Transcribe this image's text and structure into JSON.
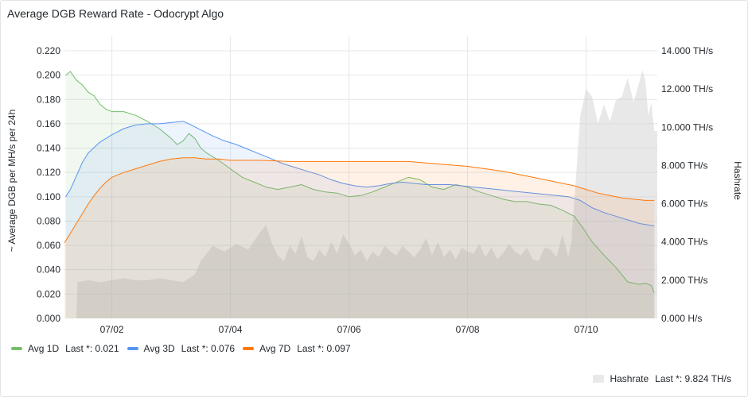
{
  "panel": {
    "title": "Average DGB Reward Rate - Odocrypt Algo"
  },
  "colors": {
    "avg1d": "#73bf69",
    "avg3d": "#5794f2",
    "avg7d": "#ff780a",
    "hashrate": "#cccccc",
    "grid": "#e6e7ea"
  },
  "legend": {
    "avg1d": {
      "name": "Avg 1D",
      "stat": "Last *: 0.021"
    },
    "avg3d": {
      "name": "Avg 3D",
      "stat": "Last *: 0.076"
    },
    "avg7d": {
      "name": "Avg 7D",
      "stat": "Last *: 0.097"
    },
    "hashrate": {
      "name": "Hashrate",
      "stat": "Last *: 9.824 TH/s"
    }
  },
  "chart_data": {
    "type": "line",
    "ylabel": "~ Average DGB per MH/s per 24h",
    "y2label": "Hashrate",
    "ylim": [
      0,
      0.22
    ],
    "y2lim": [
      0,
      14
    ],
    "yticks": [
      "0.000",
      "0.020",
      "0.040",
      "0.060",
      "0.080",
      "0.100",
      "0.120",
      "0.140",
      "0.160",
      "0.180",
      "0.200",
      "0.220"
    ],
    "y2ticks": [
      "0.000 H/s",
      "2.000 TH/s",
      "4.000 TH/s",
      "6.000 TH/s",
      "8.000 TH/s",
      "10.000 TH/s",
      "12.000 TH/s",
      "14.000 TH/s"
    ],
    "xlim": [
      1.2,
      11.2
    ],
    "xticks": [
      {
        "v": 2,
        "label": "07/02"
      },
      {
        "v": 4,
        "label": "07/04"
      },
      {
        "v": 6,
        "label": "07/06"
      },
      {
        "v": 8,
        "label": "07/08"
      },
      {
        "v": 10,
        "label": "07/10"
      }
    ],
    "grid": true,
    "legend_position": "bottom",
    "series": [
      {
        "name": "Avg 1D",
        "axis": "left",
        "color": "#73bf69",
        "points": [
          [
            1.22,
            0.2
          ],
          [
            1.3,
            0.203
          ],
          [
            1.4,
            0.196
          ],
          [
            1.5,
            0.192
          ],
          [
            1.6,
            0.186
          ],
          [
            1.7,
            0.183
          ],
          [
            1.8,
            0.176
          ],
          [
            1.9,
            0.172
          ],
          [
            2.0,
            0.17
          ],
          [
            2.2,
            0.17
          ],
          [
            2.4,
            0.167
          ],
          [
            2.6,
            0.162
          ],
          [
            2.8,
            0.156
          ],
          [
            3.0,
            0.148
          ],
          [
            3.1,
            0.143
          ],
          [
            3.2,
            0.146
          ],
          [
            3.3,
            0.152
          ],
          [
            3.4,
            0.148
          ],
          [
            3.5,
            0.14
          ],
          [
            3.6,
            0.136
          ],
          [
            3.8,
            0.13
          ],
          [
            4.0,
            0.123
          ],
          [
            4.2,
            0.116
          ],
          [
            4.4,
            0.112
          ],
          [
            4.6,
            0.108
          ],
          [
            4.8,
            0.106
          ],
          [
            5.0,
            0.108
          ],
          [
            5.2,
            0.11
          ],
          [
            5.4,
            0.106
          ],
          [
            5.6,
            0.104
          ],
          [
            5.8,
            0.103
          ],
          [
            6.0,
            0.1
          ],
          [
            6.2,
            0.101
          ],
          [
            6.4,
            0.104
          ],
          [
            6.6,
            0.108
          ],
          [
            6.8,
            0.112
          ],
          [
            7.0,
            0.116
          ],
          [
            7.2,
            0.114
          ],
          [
            7.4,
            0.108
          ],
          [
            7.6,
            0.106
          ],
          [
            7.8,
            0.11
          ],
          [
            8.0,
            0.108
          ],
          [
            8.2,
            0.104
          ],
          [
            8.4,
            0.101
          ],
          [
            8.6,
            0.098
          ],
          [
            8.8,
            0.096
          ],
          [
            9.0,
            0.096
          ],
          [
            9.2,
            0.094
          ],
          [
            9.4,
            0.093
          ],
          [
            9.6,
            0.089
          ],
          [
            9.8,
            0.084
          ],
          [
            9.95,
            0.074
          ],
          [
            10.1,
            0.063
          ],
          [
            10.3,
            0.052
          ],
          [
            10.5,
            0.042
          ],
          [
            10.7,
            0.03
          ],
          [
            10.9,
            0.028
          ],
          [
            11.0,
            0.029
          ],
          [
            11.1,
            0.027
          ],
          [
            11.15,
            0.021
          ]
        ]
      },
      {
        "name": "Avg 3D",
        "axis": "left",
        "color": "#5794f2",
        "points": [
          [
            1.22,
            0.1
          ],
          [
            1.3,
            0.106
          ],
          [
            1.4,
            0.117
          ],
          [
            1.5,
            0.128
          ],
          [
            1.6,
            0.136
          ],
          [
            1.8,
            0.145
          ],
          [
            2.0,
            0.151
          ],
          [
            2.2,
            0.156
          ],
          [
            2.4,
            0.159
          ],
          [
            2.6,
            0.16
          ],
          [
            2.8,
            0.16
          ],
          [
            3.0,
            0.161
          ],
          [
            3.2,
            0.162
          ],
          [
            3.3,
            0.16
          ],
          [
            3.5,
            0.155
          ],
          [
            3.7,
            0.15
          ],
          [
            3.9,
            0.146
          ],
          [
            4.1,
            0.143
          ],
          [
            4.3,
            0.139
          ],
          [
            4.5,
            0.135
          ],
          [
            4.7,
            0.131
          ],
          [
            4.9,
            0.127
          ],
          [
            5.1,
            0.124
          ],
          [
            5.3,
            0.121
          ],
          [
            5.5,
            0.118
          ],
          [
            5.7,
            0.114
          ],
          [
            5.9,
            0.111
          ],
          [
            6.1,
            0.109
          ],
          [
            6.3,
            0.108
          ],
          [
            6.5,
            0.109
          ],
          [
            6.7,
            0.111
          ],
          [
            6.9,
            0.112
          ],
          [
            7.1,
            0.111
          ],
          [
            7.3,
            0.11
          ],
          [
            7.5,
            0.11
          ],
          [
            7.7,
            0.11
          ],
          [
            7.9,
            0.109
          ],
          [
            8.1,
            0.108
          ],
          [
            8.3,
            0.107
          ],
          [
            8.5,
            0.106
          ],
          [
            8.7,
            0.105
          ],
          [
            8.9,
            0.104
          ],
          [
            9.1,
            0.103
          ],
          [
            9.3,
            0.102
          ],
          [
            9.5,
            0.101
          ],
          [
            9.7,
            0.1
          ],
          [
            9.9,
            0.097
          ],
          [
            10.1,
            0.091
          ],
          [
            10.3,
            0.087
          ],
          [
            10.5,
            0.084
          ],
          [
            10.7,
            0.081
          ],
          [
            10.9,
            0.078
          ],
          [
            11.15,
            0.076
          ]
        ]
      },
      {
        "name": "Avg 7D",
        "axis": "left",
        "color": "#ff780a",
        "points": [
          [
            1.2,
            0.062
          ],
          [
            1.3,
            0.07
          ],
          [
            1.4,
            0.078
          ],
          [
            1.5,
            0.086
          ],
          [
            1.6,
            0.094
          ],
          [
            1.7,
            0.101
          ],
          [
            1.8,
            0.107
          ],
          [
            1.9,
            0.112
          ],
          [
            2.0,
            0.116
          ],
          [
            2.2,
            0.12
          ],
          [
            2.4,
            0.123
          ],
          [
            2.6,
            0.126
          ],
          [
            2.8,
            0.129
          ],
          [
            3.0,
            0.131
          ],
          [
            3.2,
            0.132
          ],
          [
            3.4,
            0.132
          ],
          [
            3.6,
            0.131
          ],
          [
            3.8,
            0.131
          ],
          [
            4.0,
            0.13
          ],
          [
            4.5,
            0.13
          ],
          [
            5.0,
            0.129
          ],
          [
            5.5,
            0.129
          ],
          [
            6.0,
            0.129
          ],
          [
            6.5,
            0.129
          ],
          [
            7.0,
            0.129
          ],
          [
            7.5,
            0.127
          ],
          [
            8.0,
            0.125
          ],
          [
            8.3,
            0.123
          ],
          [
            8.6,
            0.121
          ],
          [
            8.9,
            0.118
          ],
          [
            9.2,
            0.115
          ],
          [
            9.5,
            0.112
          ],
          [
            9.8,
            0.109
          ],
          [
            10.0,
            0.106
          ],
          [
            10.2,
            0.103
          ],
          [
            10.4,
            0.101
          ],
          [
            10.6,
            0.099
          ],
          [
            10.8,
            0.098
          ],
          [
            11.0,
            0.097
          ],
          [
            11.15,
            0.097
          ]
        ]
      },
      {
        "name": "Hashrate",
        "axis": "right",
        "unit": "TH/s",
        "color": "#cccccc",
        "points": [
          [
            1.4,
            0
          ],
          [
            1.42,
            1.9
          ],
          [
            1.6,
            2.0
          ],
          [
            1.8,
            1.9
          ],
          [
            2.0,
            2.0
          ],
          [
            2.2,
            2.1
          ],
          [
            2.4,
            2.0
          ],
          [
            2.6,
            2.0
          ],
          [
            2.8,
            2.1
          ],
          [
            3.0,
            2.0
          ],
          [
            3.2,
            1.9
          ],
          [
            3.4,
            2.3
          ],
          [
            3.5,
            3.0
          ],
          [
            3.6,
            3.4
          ],
          [
            3.7,
            3.8
          ],
          [
            3.9,
            3.5
          ],
          [
            4.1,
            3.9
          ],
          [
            4.3,
            3.6
          ],
          [
            4.5,
            4.5
          ],
          [
            4.6,
            4.9
          ],
          [
            4.7,
            3.9
          ],
          [
            4.8,
            3.3
          ],
          [
            4.9,
            3.0
          ],
          [
            5.0,
            3.8
          ],
          [
            5.1,
            3.4
          ],
          [
            5.2,
            4.3
          ],
          [
            5.3,
            3.2
          ],
          [
            5.4,
            3.0
          ],
          [
            5.5,
            3.6
          ],
          [
            5.6,
            3.2
          ],
          [
            5.7,
            4.0
          ],
          [
            5.8,
            3.4
          ],
          [
            5.9,
            4.4
          ],
          [
            6.0,
            3.9
          ],
          [
            6.1,
            3.3
          ],
          [
            6.2,
            3.6
          ],
          [
            6.3,
            3.0
          ],
          [
            6.4,
            3.5
          ],
          [
            6.5,
            3.2
          ],
          [
            6.6,
            3.8
          ],
          [
            6.7,
            3.5
          ],
          [
            6.8,
            3.3
          ],
          [
            6.9,
            3.8
          ],
          [
            7.0,
            3.5
          ],
          [
            7.1,
            3.2
          ],
          [
            7.2,
            3.6
          ],
          [
            7.3,
            4.2
          ],
          [
            7.4,
            3.3
          ],
          [
            7.5,
            4.0
          ],
          [
            7.6,
            3.2
          ],
          [
            7.7,
            3.6
          ],
          [
            7.8,
            3.1
          ],
          [
            7.9,
            3.7
          ],
          [
            8.0,
            3.5
          ],
          [
            8.1,
            3.4
          ],
          [
            8.2,
            3.9
          ],
          [
            8.3,
            3.2
          ],
          [
            8.4,
            3.7
          ],
          [
            8.5,
            3.1
          ],
          [
            8.6,
            3.4
          ],
          [
            8.7,
            3.9
          ],
          [
            8.8,
            3.5
          ],
          [
            8.9,
            3.3
          ],
          [
            9.0,
            3.7
          ],
          [
            9.1,
            3.1
          ],
          [
            9.2,
            3.0
          ],
          [
            9.3,
            3.7
          ],
          [
            9.4,
            3.6
          ],
          [
            9.5,
            3.2
          ],
          [
            9.6,
            4.4
          ],
          [
            9.7,
            3.2
          ],
          [
            9.75,
            4.0
          ],
          [
            9.82,
            7.0
          ],
          [
            9.9,
            10.6
          ],
          [
            9.95,
            11.3
          ],
          [
            10.0,
            12.0
          ],
          [
            10.1,
            11.6
          ],
          [
            10.2,
            10.2
          ],
          [
            10.3,
            11.2
          ],
          [
            10.4,
            10.3
          ],
          [
            10.5,
            11.4
          ],
          [
            10.6,
            11.6
          ],
          [
            10.7,
            12.6
          ],
          [
            10.8,
            11.3
          ],
          [
            10.9,
            12.4
          ],
          [
            10.95,
            13.0
          ],
          [
            11.0,
            12.4
          ],
          [
            11.05,
            10.6
          ],
          [
            11.1,
            11.3
          ],
          [
            11.15,
            9.8
          ],
          [
            11.2,
            9.8
          ]
        ]
      }
    ]
  }
}
